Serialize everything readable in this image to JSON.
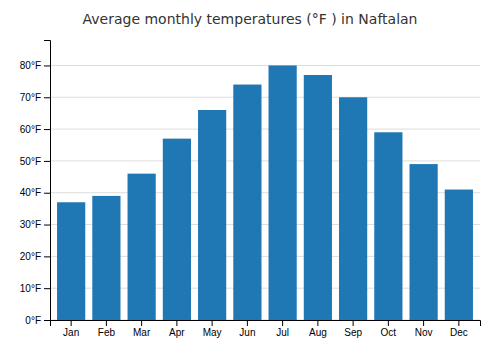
{
  "chart_data": {
    "type": "bar",
    "title": "Average monthly temperatures (°F ) in Naftalan",
    "categories": [
      "Jan",
      "Feb",
      "Mar",
      "Apr",
      "May",
      "Jun",
      "Jul",
      "Aug",
      "Sep",
      "Oct",
      "Nov",
      "Dec"
    ],
    "values": [
      37,
      39,
      46,
      57,
      66,
      74,
      80,
      77,
      70,
      59,
      49,
      41
    ],
    "ylim": [
      0,
      88
    ],
    "yticks": [
      {
        "value": 0,
        "label": "0°F"
      },
      {
        "value": 10,
        "label": "10°F"
      },
      {
        "value": 20,
        "label": "20°F"
      },
      {
        "value": 30,
        "label": "30°F"
      },
      {
        "value": 40,
        "label": "40°F"
      },
      {
        "value": 50,
        "label": "50°F"
      },
      {
        "value": 60,
        "label": "60°F"
      },
      {
        "value": 70,
        "label": "70°F"
      },
      {
        "value": 80,
        "label": "80°F"
      }
    ],
    "grid": true
  }
}
